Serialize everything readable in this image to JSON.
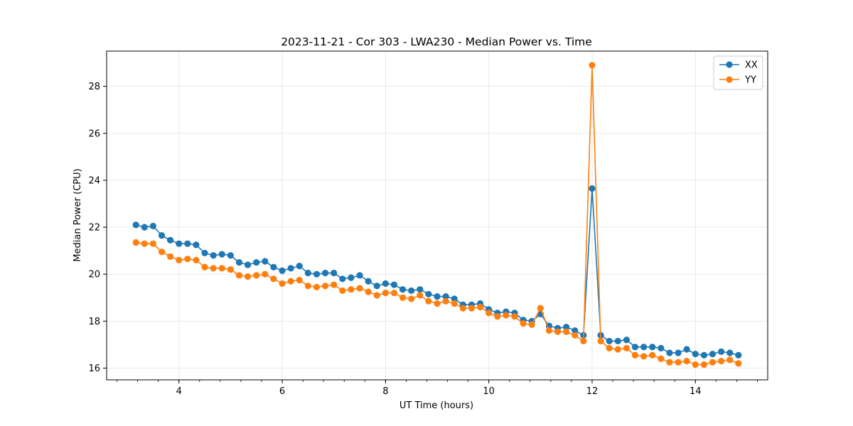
{
  "chart_data": {
    "type": "line",
    "title": "2023-11-21 - Cor 303 - LWA230 - Median Power vs. Time",
    "xlabel": "UT Time (hours)",
    "ylabel": "Median Power (CPU)",
    "xlim": [
      2.6,
      15.4
    ],
    "ylim": [
      15.5,
      29.5
    ],
    "xticks": [
      4,
      6,
      8,
      10,
      12,
      14
    ],
    "xtick_labels": [
      "4",
      "6",
      "8",
      "10",
      "12",
      "14"
    ],
    "xminor_step": 0.4,
    "yticks": [
      16,
      18,
      20,
      22,
      24,
      26,
      28
    ],
    "ytick_labels": [
      "16",
      "18",
      "20",
      "22",
      "24",
      "26",
      "28"
    ],
    "grid": true,
    "legend": "top-right",
    "x": [
      3.167,
      3.333,
      3.5,
      3.667,
      3.833,
      4.0,
      4.167,
      4.333,
      4.5,
      4.667,
      4.833,
      5.0,
      5.167,
      5.333,
      5.5,
      5.667,
      5.833,
      6.0,
      6.167,
      6.333,
      6.5,
      6.667,
      6.833,
      7.0,
      7.167,
      7.333,
      7.5,
      7.667,
      7.833,
      8.0,
      8.167,
      8.333,
      8.5,
      8.667,
      8.833,
      9.0,
      9.167,
      9.333,
      9.5,
      9.667,
      9.833,
      10.0,
      10.167,
      10.333,
      10.5,
      10.667,
      10.833,
      11.0,
      11.167,
      11.333,
      11.5,
      11.667,
      11.833,
      12.0,
      12.167,
      12.333,
      12.5,
      12.667,
      12.833,
      13.0,
      13.167,
      13.333,
      13.5,
      13.667,
      13.833,
      14.0,
      14.167,
      14.333,
      14.5,
      14.667,
      14.833
    ],
    "series": [
      {
        "name": "XX",
        "color": "#1f77b4",
        "values": [
          22.1,
          22.0,
          22.05,
          21.65,
          21.45,
          21.3,
          21.3,
          21.25,
          20.9,
          20.8,
          20.85,
          20.8,
          20.5,
          20.4,
          20.5,
          20.55,
          20.3,
          20.15,
          20.25,
          20.35,
          20.05,
          20.0,
          20.05,
          20.05,
          19.8,
          19.85,
          19.95,
          19.7,
          19.5,
          19.6,
          19.55,
          19.35,
          19.3,
          19.35,
          19.15,
          19.05,
          19.05,
          18.95,
          18.7,
          18.7,
          18.75,
          18.5,
          18.35,
          18.4,
          18.35,
          18.05,
          18.0,
          18.3,
          17.8,
          17.7,
          17.75,
          17.6,
          17.4,
          23.65,
          17.4,
          17.15,
          17.15,
          17.2,
          16.9,
          16.9,
          16.9,
          16.85,
          16.65,
          16.65,
          16.8,
          16.6,
          16.55,
          16.6,
          16.7,
          16.65,
          16.55
        ]
      },
      {
        "name": "YY",
        "color": "#ff7f0e",
        "values": [
          21.35,
          21.3,
          21.3,
          20.95,
          20.75,
          20.6,
          20.65,
          20.6,
          20.3,
          20.25,
          20.25,
          20.2,
          19.95,
          19.9,
          19.95,
          20.0,
          19.8,
          19.6,
          19.7,
          19.75,
          19.5,
          19.45,
          19.5,
          19.55,
          19.3,
          19.35,
          19.4,
          19.25,
          19.1,
          19.2,
          19.2,
          19.0,
          18.95,
          19.1,
          18.85,
          18.75,
          18.85,
          18.75,
          18.55,
          18.55,
          18.6,
          18.35,
          18.2,
          18.25,
          18.2,
          17.9,
          17.85,
          18.55,
          17.6,
          17.55,
          17.55,
          17.4,
          17.15,
          28.9,
          17.15,
          16.85,
          16.8,
          16.85,
          16.55,
          16.5,
          16.55,
          16.4,
          16.25,
          16.25,
          16.3,
          16.15,
          16.15,
          16.25,
          16.3,
          16.35,
          16.2
        ]
      }
    ]
  }
}
